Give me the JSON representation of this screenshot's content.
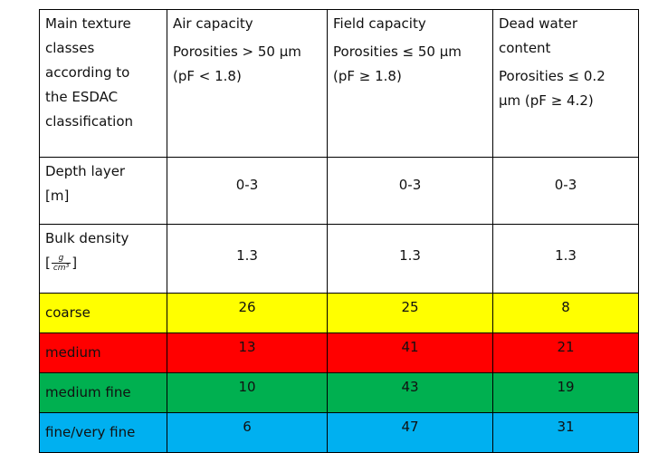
{
  "header": {
    "col1": [
      "Main texture",
      "classes",
      "according to",
      "the ESDAC",
      "classification"
    ],
    "col2": {
      "title": "Air capacity",
      "detail": [
        "Porosities > 50 µm",
        "(pF < 1.8)"
      ]
    },
    "col3": {
      "title": "Field capacity",
      "detail": [
        "Porosities ≤ 50 µm",
        "(pF ≥ 1.8)"
      ]
    },
    "col4": {
      "title": [
        "Dead water",
        "content"
      ],
      "detail": [
        "Porosities ≤ 0.2",
        "µm (pF ≥ 4.2)"
      ]
    }
  },
  "depth": {
    "label": [
      "Depth layer",
      "[m]"
    ],
    "values": [
      "0-3",
      "0-3",
      "0-3"
    ]
  },
  "bulk": {
    "label": "Bulk density",
    "unit": {
      "open": "[",
      "numerator": "g",
      "denominator": "cm³",
      "close": "]"
    },
    "values": [
      "1.3",
      "1.3",
      "1.3"
    ]
  },
  "colors": {
    "coarse": "#ffff00",
    "medium": "#ff0000",
    "medium_fine": "#00b050",
    "fine": "#00b0f0"
  },
  "rows": [
    {
      "label": "coarse",
      "values": [
        "26",
        "25",
        "8"
      ]
    },
    {
      "label": "medium",
      "values": [
        "13",
        "41",
        "21"
      ]
    },
    {
      "label": "medium fine",
      "values": [
        "10",
        "43",
        "19"
      ]
    },
    {
      "label": "fine/very fine",
      "values": [
        "6",
        "47",
        "31"
      ]
    }
  ]
}
